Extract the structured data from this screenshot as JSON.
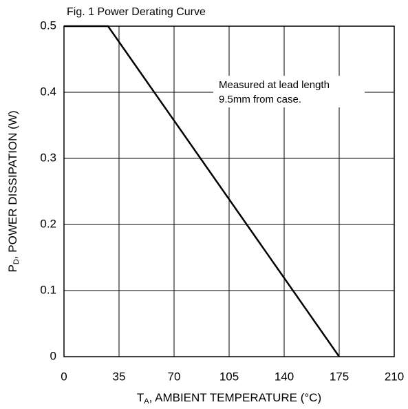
{
  "chart_data": {
    "type": "line",
    "title": "Fig. 1 Power Derating Curve",
    "x_label": {
      "symbol": "T",
      "subscript": "A",
      "text": ", AMBIENT TEMPERATURE (°C)"
    },
    "y_label": {
      "symbol": "P",
      "subscript": "D",
      "text": ", POWER DISSIPATION (W)"
    },
    "annotation": [
      "Measured at lead length",
      "9.5mm from case."
    ],
    "x": [
      0,
      28,
      175
    ],
    "series": [
      {
        "color": "#000000",
        "values": [
          0.5,
          0.5,
          0
        ]
      }
    ],
    "xlim": [
      0,
      210
    ],
    "xticks": [
      0,
      35,
      70,
      105,
      140,
      175,
      210
    ],
    "ylim": [
      0,
      0.5
    ],
    "yticks": [
      0,
      0.1,
      0.2,
      0.3,
      0.4,
      0.5
    ],
    "grid": true
  }
}
